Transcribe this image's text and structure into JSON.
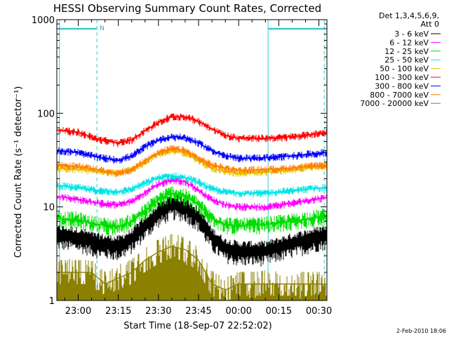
{
  "chart_data": {
    "type": "line",
    "title": "HESSI Observing Summary Count Rates, Corrected",
    "ylabel": "Corrected Count Rate (s⁻¹ detector⁻¹)",
    "xlabel": "Start Time (18-Sep-07 22:52:02)",
    "y_scale": "log",
    "ylim": [
      1,
      1000
    ],
    "xlim": [
      "22:52",
      "00:33"
    ],
    "y_ticks": [
      "1",
      "10",
      "100",
      "1000"
    ],
    "x_ticks": [
      {
        "t": "23:00",
        "label": "23:00"
      },
      {
        "t": "23:15",
        "label": "23:15"
      },
      {
        "t": "23:30",
        "label": "23:30"
      },
      {
        "t": "23:45",
        "label": "23:45"
      },
      {
        "t": "00:00",
        "label": "00:00"
      },
      {
        "t": "00:15",
        "label": "00:15"
      },
      {
        "t": "00:30",
        "label": "00:30"
      }
    ],
    "legend": {
      "header": [
        "Det 1,3,4,5,6,9,",
        "Att 0"
      ],
      "placement": "right"
    },
    "night_marks": [
      {
        "start": "22:53",
        "end": "23:07",
        "label": "N"
      },
      {
        "start": "00:11",
        "end": "00:32",
        "label": ""
      }
    ],
    "series": [
      {
        "name": "3 - 6 keV",
        "color": "#000000",
        "points": [
          [
            "22:52",
            5.5
          ],
          [
            "23:00",
            5.2
          ],
          [
            "23:07",
            4.5
          ],
          [
            "23:15",
            4.2
          ],
          [
            "23:20",
            5.0
          ],
          [
            "23:25",
            7.0
          ],
          [
            "23:30",
            9.5
          ],
          [
            "23:35",
            11.5
          ],
          [
            "23:40",
            11.0
          ],
          [
            "23:45",
            8.5
          ],
          [
            "23:50",
            5.2
          ],
          [
            "23:55",
            4.0
          ],
          [
            "00:00",
            3.7
          ],
          [
            "00:10",
            3.7
          ],
          [
            "00:20",
            4.5
          ],
          [
            "00:32",
            5.5
          ]
        ]
      },
      {
        "name": "6 - 12 keV",
        "color": "#ff00ff",
        "points": [
          [
            "22:52",
            13
          ],
          [
            "23:00",
            12
          ],
          [
            "23:07",
            11
          ],
          [
            "23:15",
            10.5
          ],
          [
            "23:20",
            11.5
          ],
          [
            "23:25",
            14
          ],
          [
            "23:30",
            17.5
          ],
          [
            "23:35",
            19.5
          ],
          [
            "23:40",
            18.5
          ],
          [
            "23:45",
            15
          ],
          [
            "23:50",
            12
          ],
          [
            "23:55",
            10.5
          ],
          [
            "00:00",
            10
          ],
          [
            "00:10",
            10
          ],
          [
            "00:20",
            11
          ],
          [
            "00:32",
            12.5
          ]
        ]
      },
      {
        "name": "12 - 25 keV",
        "color": "#00dd00",
        "points": [
          [
            "22:52",
            7.5
          ],
          [
            "23:00",
            7.3
          ],
          [
            "23:07",
            6.5
          ],
          [
            "23:15",
            6.2
          ],
          [
            "23:20",
            7.0
          ],
          [
            "23:25",
            9.0
          ],
          [
            "23:30",
            12.0
          ],
          [
            "23:35",
            14.0
          ],
          [
            "23:40",
            13.0
          ],
          [
            "23:45",
            10.5
          ],
          [
            "23:50",
            7.5
          ],
          [
            "23:55",
            6.5
          ],
          [
            "00:00",
            6.3
          ],
          [
            "00:10",
            6.5
          ],
          [
            "00:20",
            7.0
          ],
          [
            "00:32",
            8.0
          ]
        ]
      },
      {
        "name": "25 - 50 keV",
        "color": "#00e5e5",
        "points": [
          [
            "22:52",
            17
          ],
          [
            "23:00",
            16
          ],
          [
            "23:07",
            15
          ],
          [
            "23:15",
            14.5
          ],
          [
            "23:20",
            15.5
          ],
          [
            "23:25",
            18
          ],
          [
            "23:30",
            20.5
          ],
          [
            "23:35",
            21.5
          ],
          [
            "23:40",
            20.5
          ],
          [
            "23:45",
            18.5
          ],
          [
            "23:50",
            15.5
          ],
          [
            "23:55",
            14.5
          ],
          [
            "00:00",
            14
          ],
          [
            "00:10",
            14
          ],
          [
            "00:20",
            15
          ],
          [
            "00:32",
            16
          ]
        ]
      },
      {
        "name": "50 - 100 keV",
        "color": "#e5c800",
        "points": [
          [
            "22:52",
            26
          ],
          [
            "23:00",
            25
          ],
          [
            "23:07",
            24
          ],
          [
            "23:15",
            23
          ],
          [
            "23:20",
            25
          ],
          [
            "23:25",
            30
          ],
          [
            "23:30",
            37
          ],
          [
            "23:35",
            40
          ],
          [
            "23:40",
            38
          ],
          [
            "23:45",
            31
          ],
          [
            "23:50",
            26
          ],
          [
            "23:55",
            24
          ],
          [
            "00:00",
            23
          ],
          [
            "00:10",
            23.5
          ],
          [
            "00:20",
            25
          ],
          [
            "00:32",
            27
          ]
        ]
      },
      {
        "name": "100 - 300 keV",
        "color": "#ff0000",
        "points": [
          [
            "22:52",
            66
          ],
          [
            "23:00",
            63
          ],
          [
            "23:07",
            53
          ],
          [
            "23:15",
            48
          ],
          [
            "23:20",
            52
          ],
          [
            "23:25",
            65
          ],
          [
            "23:30",
            80
          ],
          [
            "23:35",
            92
          ],
          [
            "23:40",
            92
          ],
          [
            "23:45",
            82
          ],
          [
            "23:50",
            68
          ],
          [
            "23:55",
            58
          ],
          [
            "00:00",
            54
          ],
          [
            "00:10",
            54
          ],
          [
            "00:20",
            56
          ],
          [
            "00:32",
            62
          ]
        ]
      },
      {
        "name": "300 - 800 keV",
        "color": "#0000ff",
        "points": [
          [
            "22:52",
            40
          ],
          [
            "23:00",
            38
          ],
          [
            "23:07",
            34
          ],
          [
            "23:15",
            31.5
          ],
          [
            "23:20",
            35
          ],
          [
            "23:25",
            44
          ],
          [
            "23:30",
            52
          ],
          [
            "23:35",
            56
          ],
          [
            "23:40",
            55
          ],
          [
            "23:45",
            48
          ],
          [
            "23:50",
            40
          ],
          [
            "23:55",
            35
          ],
          [
            "00:00",
            33
          ],
          [
            "00:10",
            33.5
          ],
          [
            "00:20",
            35
          ],
          [
            "00:32",
            38
          ]
        ]
      },
      {
        "name": "800 - 7000 keV",
        "color": "#ff8000",
        "points": [
          [
            "22:52",
            28
          ],
          [
            "23:00",
            27
          ],
          [
            "23:07",
            25
          ],
          [
            "23:15",
            22.5
          ],
          [
            "23:20",
            25
          ],
          [
            "23:25",
            31
          ],
          [
            "23:30",
            38
          ],
          [
            "23:35",
            42
          ],
          [
            "23:40",
            40
          ],
          [
            "23:45",
            33
          ],
          [
            "23:50",
            28
          ],
          [
            "23:55",
            26
          ],
          [
            "00:00",
            24.5
          ],
          [
            "00:10",
            25
          ],
          [
            "00:20",
            26
          ],
          [
            "00:32",
            28
          ]
        ]
      },
      {
        "name": "7000 - 20000 keV",
        "color": "#8b8000",
        "points": [
          [
            "22:52",
            2.0
          ],
          [
            "23:00",
            2.0
          ],
          [
            "23:05",
            2.0
          ],
          [
            "23:10",
            1.5
          ],
          [
            "23:20",
            2.0
          ],
          [
            "23:25",
            2.7
          ],
          [
            "23:30",
            3.3
          ],
          [
            "23:35",
            3.8
          ],
          [
            "23:40",
            3.5
          ],
          [
            "23:45",
            2.7
          ],
          [
            "23:50",
            1.5
          ],
          [
            "23:55",
            1.3
          ],
          [
            "00:00",
            1.5
          ],
          [
            "00:10",
            1.5
          ],
          [
            "00:20",
            1.5
          ],
          [
            "00:32",
            1.5
          ]
        ]
      }
    ]
  },
  "footer": {
    "timestamp": "2-Feb-2010 18:06"
  }
}
